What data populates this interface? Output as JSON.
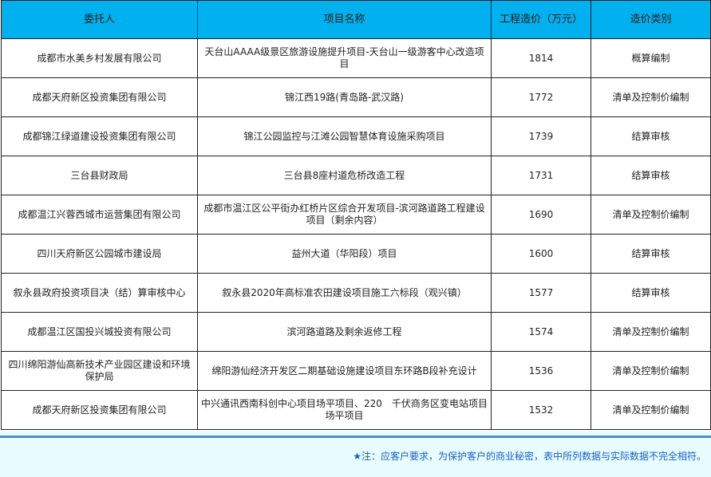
{
  "table": {
    "headers": [
      "委托人",
      "项目名称",
      "工程造价（万元）",
      "造价类别"
    ],
    "rows": [
      [
        "成都市水美乡村发展有限公司",
        "天台山AAAA级景区旅游设施提升项目-天台山一级游客中心改造项目",
        "1814",
        "概算编制"
      ],
      [
        "成都天府新区投资集团有限公司",
        "锦江西19路(青岛路-武汉路)",
        "1772",
        "清单及控制价编制"
      ],
      [
        "成都锦江绿道建设投资集团有限公司",
        "锦江公园监控与江滩公园智慧体育设施采购项目",
        "1739",
        "结算审核"
      ],
      [
        "三台县财政局",
        "三台县8座村道危桥改造工程",
        "1731",
        "结算审核"
      ],
      [
        "成都温江兴蓉西城市运营集团有限公司",
        "成都市温江区公平街办红桥片区综合开发项目-滨河路道路工程建设项目（剩余内容）",
        "1690",
        "清单及控制价编制"
      ],
      [
        "四川天府新区公园城市建设局",
        "益州大道（华阳段）项目",
        "1600",
        "结算审核"
      ],
      [
        "叙永县政府投资项目决（结）算审核中心",
        "叙永县2020年高标准农田建设项目施工六标段（观兴镇）",
        "1577",
        "结算审核"
      ],
      [
        "成都温江区国投兴城投资有限公司",
        "滨河路道路及剩余返修工程",
        "1574",
        "清单及控制价编制"
      ],
      [
        "四川绵阳游仙高新技术产业园区建设和环境保护局",
        "绵阳游仙经济开发区二期基础设施建设项目东环路B段补充设计",
        "1536",
        "清单及控制价编制"
      ],
      [
        "成都天府新区投资集团有限公司",
        "中兴通讯西南科创中心项目场平项目、220　千伏商务区变电站项目场平项目",
        "1532",
        "清单及控制价编制"
      ]
    ]
  },
  "footer": {
    "note": "★注：应客户要求，为保护客户的商业秘密，表中所列数据与实际数据不完全相符。"
  },
  "colors": {
    "header_bg": "#00b0ef",
    "footer_bg": "#e6fcfd",
    "note_text": "#1a5fc8",
    "divider": "#4a8fd6"
  }
}
